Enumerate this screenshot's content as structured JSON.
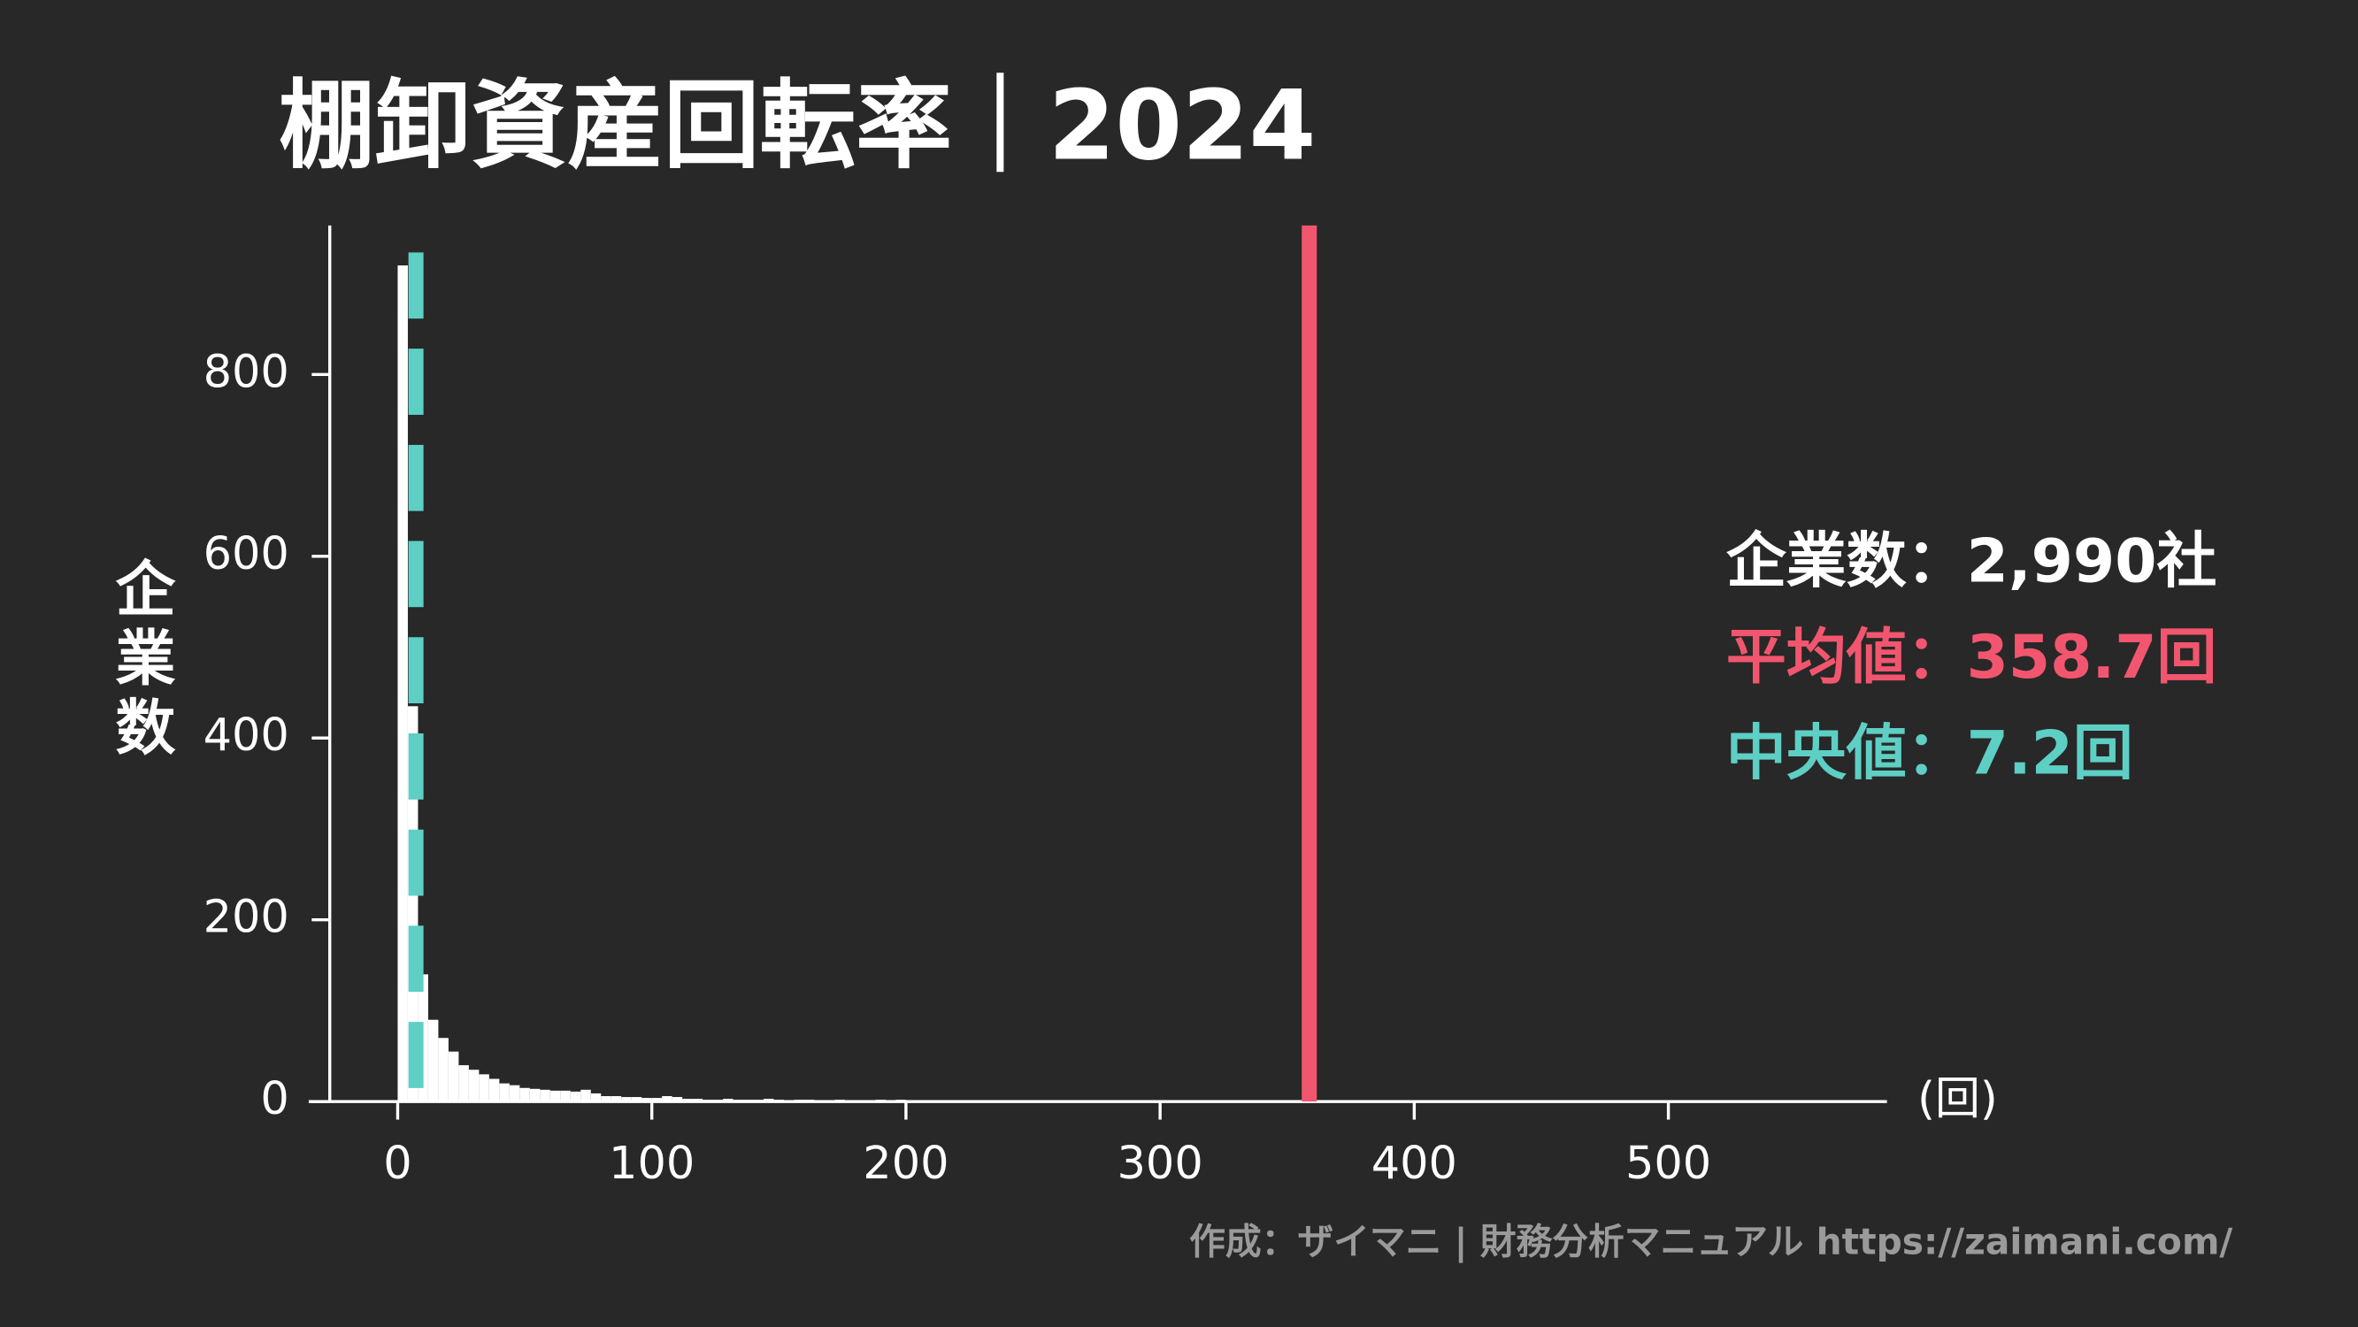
{
  "chart_data": {
    "type": "histogram",
    "title": "棚卸資産回転率｜2024",
    "y_label": "企業数",
    "x_unit": "(回)",
    "bins": [
      0,
      4,
      8,
      12,
      16,
      20,
      24,
      28,
      32,
      36,
      40,
      44,
      48,
      52,
      56,
      60,
      64,
      68,
      72,
      76,
      80,
      84,
      88,
      92,
      96,
      100,
      104,
      108,
      112,
      116,
      120,
      124,
      128,
      132,
      136,
      140,
      144,
      148,
      152,
      156,
      160,
      164,
      168,
      172,
      176,
      180,
      184,
      188,
      192,
      196,
      200
    ],
    "counts": [
      920,
      435,
      140,
      90,
      70,
      55,
      40,
      35,
      30,
      25,
      20,
      18,
      15,
      14,
      13,
      12,
      12,
      11,
      13,
      9,
      6,
      6,
      5,
      5,
      4,
      4,
      6,
      5,
      3,
      3,
      2,
      2,
      3,
      2,
      2,
      2,
      3,
      2,
      1,
      2,
      2,
      1,
      1,
      2,
      1,
      1,
      1,
      2,
      1,
      2
    ],
    "color": "#ffffff",
    "xlim": [
      -35,
      586
    ],
    "ylim": [
      0,
      964
    ],
    "xticks": [
      0,
      100,
      200,
      300,
      400,
      500
    ],
    "yticks": [
      0,
      200,
      400,
      600,
      800
    ],
    "mean": {
      "value": 358.7,
      "color": "#f2566e"
    },
    "median": {
      "value": 7.2,
      "color": "#5ecfc4"
    },
    "annotations": [
      {
        "text": "企業数：2,990社",
        "color": "#ffffff"
      },
      {
        "text": "平均値：358.7回",
        "color": "#f2566e"
      },
      {
        "text": "中央値：7.2回",
        "color": "#5ecfc4"
      }
    ],
    "source": "作成：ザイマニ | 財務分析マニュアル https://zaimani.com/"
  }
}
